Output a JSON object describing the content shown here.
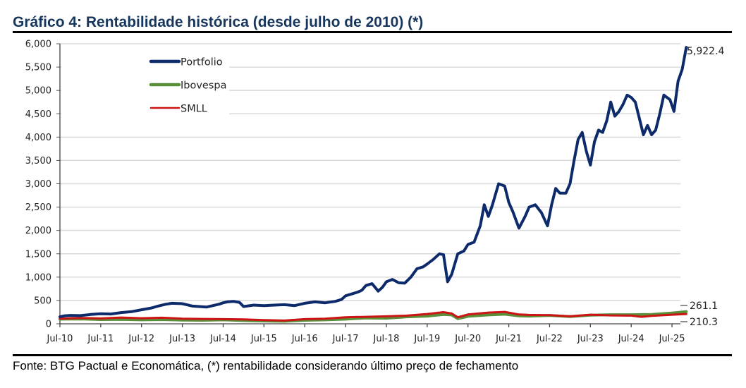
{
  "title": "Gráfico 4: Rentabilidade histórica (desde julho de 2010) (*)",
  "footer": "Fonte: BTG Pactual e Economática, (*) rentabilidade considerando último preço de fechamento",
  "chart_data": {
    "type": "line",
    "title": "Gráfico 4: Rentabilidade histórica (desde julho de 2010) (*)",
    "xlabel": "",
    "ylabel": "",
    "ylim": [
      0,
      6000
    ],
    "yticks": [
      0,
      500,
      1000,
      1500,
      2000,
      2500,
      3000,
      3500,
      4000,
      4500,
      5000,
      5500,
      6000
    ],
    "ytick_labels": [
      "0",
      "500",
      "1,000",
      "1,500",
      "2,000",
      "2,500",
      "3,000",
      "3,500",
      "4,000",
      "4,500",
      "5,000",
      "5,500",
      "6,000"
    ],
    "xlim": [
      2010.5,
      2025.85
    ],
    "xticks": [
      2010.5,
      2011.5,
      2012.5,
      2013.5,
      2014.5,
      2015.5,
      2016.5,
      2017.5,
      2018.5,
      2019.5,
      2020.5,
      2021.5,
      2022.5,
      2023.5,
      2024.5,
      2025.5
    ],
    "xtick_labels": [
      "Jul-10",
      "Jul-11",
      "Jul-12",
      "Jul-13",
      "Jul-14",
      "Jul-15",
      "Jul-16",
      "Jul-17",
      "Jul-18",
      "Jul-19",
      "Jul-20",
      "Jul-21",
      "Jul-22",
      "Jul-23",
      "Jul-24",
      "Jul-25"
    ],
    "grid": true,
    "legend": "top-left",
    "colors": {
      "Portfolio": "#0d2a6b",
      "Ibovespa": "#5a8f3a",
      "SMLL": "#cc1414"
    },
    "end_labels": {
      "Portfolio": "5,922.4",
      "Ibovespa": "261.1",
      "SMLL": "210.3"
    },
    "series": [
      {
        "name": "Portfolio",
        "x": [
          2010.5,
          2010.6,
          2010.75,
          2011.0,
          2011.25,
          2011.5,
          2011.75,
          2012.0,
          2012.25,
          2012.5,
          2012.75,
          2012.9,
          2013.1,
          2013.25,
          2013.5,
          2013.75,
          2013.9,
          2014.1,
          2014.25,
          2014.4,
          2014.5,
          2014.6,
          2014.75,
          2014.9,
          2015.0,
          2015.25,
          2015.5,
          2015.75,
          2016.0,
          2016.25,
          2016.5,
          2016.75,
          2017.0,
          2017.25,
          2017.4,
          2017.5,
          2017.65,
          2017.8,
          2017.9,
          2018.0,
          2018.15,
          2018.3,
          2018.4,
          2018.5,
          2018.65,
          2018.8,
          2018.95,
          2019.1,
          2019.25,
          2019.4,
          2019.5,
          2019.65,
          2019.8,
          2019.9,
          2020.0,
          2020.1,
          2020.25,
          2020.4,
          2020.5,
          2020.65,
          2020.8,
          2020.9,
          2021.0,
          2021.1,
          2021.25,
          2021.4,
          2021.5,
          2021.6,
          2021.75,
          2021.9,
          2022.0,
          2022.15,
          2022.3,
          2022.45,
          2022.55,
          2022.65,
          2022.75,
          2022.9,
          2023.0,
          2023.1,
          2023.2,
          2023.3,
          2023.4,
          2023.5,
          2023.6,
          2023.7,
          2023.8,
          2023.9,
          2024.0,
          2024.1,
          2024.2,
          2024.3,
          2024.4,
          2024.5,
          2024.6,
          2024.7,
          2024.8,
          2024.9,
          2025.0,
          2025.1,
          2025.2,
          2025.3,
          2025.45,
          2025.55,
          2025.65,
          2025.75,
          2025.85
        ],
        "y": [
          150,
          170,
          180,
          175,
          200,
          215,
          210,
          240,
          260,
          300,
          340,
          380,
          420,
          440,
          430,
          380,
          370,
          360,
          390,
          420,
          450,
          470,
          480,
          460,
          370,
          400,
          390,
          400,
          410,
          390,
          440,
          470,
          450,
          480,
          520,
          600,
          640,
          680,
          720,
          820,
          860,
          700,
          780,
          900,
          950,
          880,
          870,
          1000,
          1180,
          1220,
          1280,
          1380,
          1500,
          1480,
          900,
          1060,
          1500,
          1560,
          1700,
          1750,
          2100,
          2550,
          2300,
          2550,
          3000,
          2950,
          2600,
          2400,
          2050,
          2300,
          2500,
          2550,
          2380,
          2100,
          2550,
          2900,
          2800,
          2800,
          3000,
          3500,
          3950,
          4100,
          3700,
          3400,
          3900,
          4150,
          4100,
          4350,
          4750,
          4450,
          4550,
          4700,
          4900,
          4850,
          4750,
          4400,
          4050,
          4250,
          4050,
          4150,
          4500,
          4900,
          4800,
          4550,
          5200,
          5450,
          5922.4
        ]
      },
      {
        "name": "Ibovespa",
        "x": [
          2010.5,
          2011.0,
          2011.5,
          2012.0,
          2012.5,
          2013.0,
          2013.5,
          2014.0,
          2014.5,
          2015.0,
          2015.5,
          2016.0,
          2016.5,
          2017.0,
          2017.5,
          2018.0,
          2018.5,
          2019.0,
          2019.5,
          2019.9,
          2020.1,
          2020.25,
          2020.5,
          2021.0,
          2021.4,
          2021.75,
          2022.0,
          2022.5,
          2023.0,
          2023.5,
          2024.0,
          2024.5,
          2025.0,
          2025.5,
          2025.85
        ],
        "y": [
          100,
          105,
          90,
          95,
          85,
          90,
          80,
          75,
          85,
          70,
          60,
          55,
          75,
          85,
          100,
          125,
          120,
          150,
          165,
          200,
          190,
          110,
          160,
          190,
          205,
          170,
          165,
          180,
          155,
          185,
          195,
          195,
          200,
          230,
          261.1
        ]
      },
      {
        "name": "SMLL",
        "x": [
          2010.5,
          2011.0,
          2011.5,
          2012.0,
          2012.5,
          2013.0,
          2013.5,
          2014.0,
          2014.5,
          2015.0,
          2015.5,
          2016.0,
          2016.5,
          2017.0,
          2017.5,
          2018.0,
          2018.5,
          2019.0,
          2019.5,
          2019.9,
          2020.1,
          2020.25,
          2020.5,
          2021.0,
          2021.4,
          2021.75,
          2022.0,
          2022.5,
          2023.0,
          2023.5,
          2024.0,
          2024.5,
          2024.75,
          2025.0,
          2025.5,
          2025.85
        ],
        "y": [
          110,
          125,
          115,
          135,
          120,
          130,
          110,
          105,
          100,
          95,
          80,
          70,
          100,
          110,
          140,
          150,
          160,
          175,
          210,
          250,
          220,
          140,
          200,
          240,
          255,
          200,
          190,
          185,
          160,
          195,
          180,
          175,
          150,
          170,
          195,
          210.3
        ]
      }
    ]
  }
}
